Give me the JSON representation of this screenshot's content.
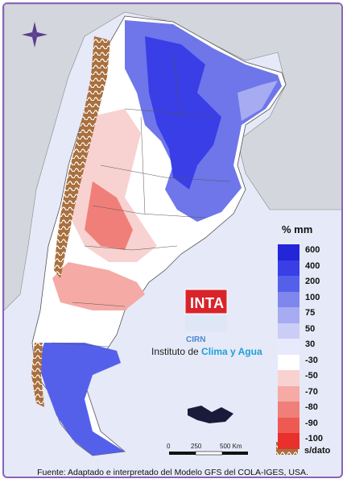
{
  "map": {
    "legend_title": "% mm",
    "legend": [
      {
        "label": "600",
        "color": "#2424d8"
      },
      {
        "label": "400",
        "color": "#3a3ee6"
      },
      {
        "label": "200",
        "color": "#5560ea"
      },
      {
        "label": "100",
        "color": "#7f86ec"
      },
      {
        "label": "75",
        "color": "#a7abf2"
      },
      {
        "label": "50",
        "color": "#cbcdf7"
      },
      {
        "label": "30",
        "color": "#e8e9fc"
      },
      {
        "label": "-30",
        "color": "#ffffff"
      },
      {
        "label": "-50",
        "color": "#f8d2d0"
      },
      {
        "label": "-70",
        "color": "#f5aaa6"
      },
      {
        "label": "-80",
        "color": "#f17f79"
      },
      {
        "label": "-90",
        "color": "#ee5a52"
      },
      {
        "label": "-100",
        "color": "#e8302c"
      }
    ],
    "nodata_label": "s/dato",
    "scale": {
      "labels": [
        "0",
        "250",
        "500 Km"
      ]
    },
    "logo": {
      "name": "INTA",
      "sub": "CIRN",
      "institute_prefix": "Instituto de ",
      "institute_highlight": "Clima y Agua"
    },
    "source": "Fuente: Adaptado e interpretado del Modelo GFS del COLA-IGES, USA.",
    "colors": {
      "ocean": "#e6e9f7",
      "land_neighbor": "#d3d6dc",
      "border": "#8a63b8"
    }
  }
}
